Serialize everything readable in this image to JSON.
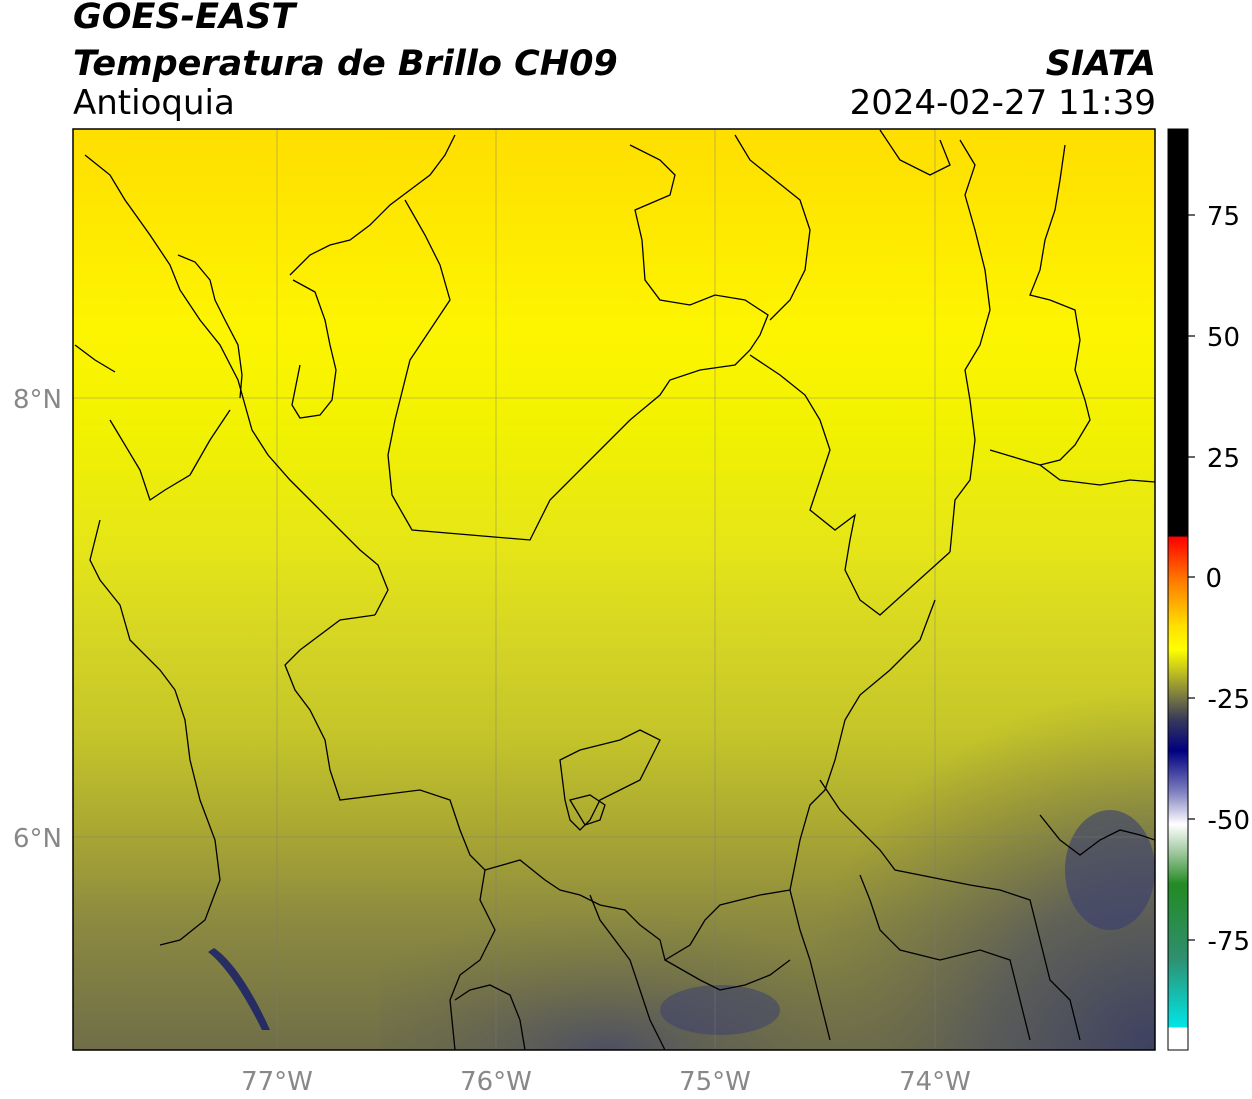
{
  "header": {
    "satellite": "GOES-EAST",
    "product": "Temperatura de Brillo CH09",
    "region": "Antioquia",
    "agency": "SIATA",
    "datetime": "2024-02-27 11:39"
  },
  "map": {
    "lon_ticks": [
      "77°W",
      "76°W",
      "75°W",
      "74°W"
    ],
    "lat_ticks": [
      "8°N",
      "6°N"
    ],
    "gridlines": true
  },
  "colorbar": {
    "ticks": [
      "75",
      "50",
      "25",
      "0",
      "-25",
      "-50",
      "-75"
    ],
    "colors": {
      "black": "#000000",
      "red": "#ff2000",
      "orange": "#ff8c00",
      "yellow": "#ffff00",
      "olive": "#7a7a40",
      "navy": "#000080",
      "white": "#ffffff",
      "green": "#228b22",
      "cyan": "#00e5e5"
    }
  }
}
